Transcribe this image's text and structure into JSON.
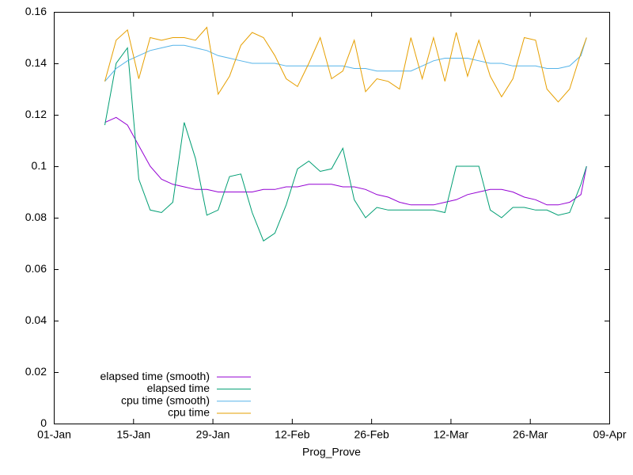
{
  "chart_data": {
    "type": "line",
    "x": [
      "10-Jan",
      "12-Jan",
      "14-Jan",
      "16-Jan",
      "18-Jan",
      "20-Jan",
      "22-Jan",
      "24-Jan",
      "26-Jan",
      "28-Jan",
      "30-Jan",
      "01-Feb",
      "03-Feb",
      "05-Feb",
      "07-Feb",
      "09-Feb",
      "11-Feb",
      "13-Feb",
      "15-Feb",
      "17-Feb",
      "19-Feb",
      "21-Feb",
      "23-Feb",
      "25-Feb",
      "27-Feb",
      "01-Mar",
      "03-Mar",
      "05-Mar",
      "07-Mar",
      "09-Mar",
      "11-Mar",
      "13-Mar",
      "15-Mar",
      "17-Mar",
      "19-Mar",
      "21-Mar",
      "23-Mar",
      "25-Mar",
      "27-Mar",
      "29-Mar",
      "31-Mar",
      "02-Apr",
      "04-Apr",
      "05-Apr"
    ],
    "series": [
      {
        "name": "elapsed time (smooth)",
        "color": "#9400d3",
        "values": [
          0.117,
          0.119,
          0.116,
          0.108,
          0.1,
          0.095,
          0.093,
          0.092,
          0.091,
          0.091,
          0.09,
          0.09,
          0.09,
          0.09,
          0.091,
          0.091,
          0.092,
          0.092,
          0.093,
          0.093,
          0.093,
          0.092,
          0.092,
          0.091,
          0.089,
          0.088,
          0.086,
          0.085,
          0.085,
          0.085,
          0.086,
          0.087,
          0.089,
          0.09,
          0.091,
          0.091,
          0.09,
          0.088,
          0.087,
          0.085,
          0.085,
          0.086,
          0.089,
          0.1
        ]
      },
      {
        "name": "elapsed time",
        "color": "#009e73",
        "values": [
          0.116,
          0.14,
          0.146,
          0.095,
          0.083,
          0.082,
          0.086,
          0.117,
          0.103,
          0.081,
          0.083,
          0.096,
          0.097,
          0.082,
          0.071,
          0.074,
          0.085,
          0.099,
          0.102,
          0.098,
          0.099,
          0.107,
          0.087,
          0.08,
          0.084,
          0.083,
          0.083,
          0.083,
          0.083,
          0.083,
          0.082,
          0.1,
          0.1,
          0.1,
          0.083,
          0.08,
          0.084,
          0.084,
          0.083,
          0.083,
          0.081,
          0.082,
          0.093,
          0.1
        ]
      },
      {
        "name": "cpu time (smooth)",
        "color": "#56b4e9",
        "values": [
          0.133,
          0.138,
          0.141,
          0.143,
          0.145,
          0.146,
          0.147,
          0.147,
          0.146,
          0.145,
          0.143,
          0.142,
          0.141,
          0.14,
          0.14,
          0.14,
          0.139,
          0.139,
          0.139,
          0.139,
          0.139,
          0.139,
          0.138,
          0.138,
          0.137,
          0.137,
          0.137,
          0.137,
          0.139,
          0.141,
          0.142,
          0.142,
          0.142,
          0.141,
          0.14,
          0.14,
          0.139,
          0.139,
          0.139,
          0.138,
          0.138,
          0.139,
          0.143,
          0.15
        ]
      },
      {
        "name": "cpu time",
        "color": "#e69f00",
        "values": [
          0.133,
          0.149,
          0.153,
          0.134,
          0.15,
          0.149,
          0.15,
          0.15,
          0.149,
          0.154,
          0.128,
          0.135,
          0.147,
          0.152,
          0.15,
          0.143,
          0.134,
          0.131,
          0.14,
          0.15,
          0.134,
          0.137,
          0.149,
          0.129,
          0.134,
          0.133,
          0.13,
          0.15,
          0.134,
          0.15,
          0.133,
          0.152,
          0.135,
          0.149,
          0.135,
          0.127,
          0.134,
          0.15,
          0.149,
          0.13,
          0.125,
          0.13,
          0.144,
          0.15
        ]
      }
    ],
    "xlabel": "Prog_Prove",
    "xlim": [
      "01-Jan",
      "09-Apr"
    ],
    "xticks": [
      "01-Jan",
      "15-Jan",
      "29-Jan",
      "12-Feb",
      "26-Feb",
      "12-Mar",
      "26-Mar",
      "09-Apr"
    ],
    "ylim": [
      0,
      0.16
    ],
    "yticks": [
      0,
      0.02,
      0.04,
      0.06,
      0.08,
      0.1,
      0.12,
      0.14,
      0.16
    ],
    "legend": "lower left"
  }
}
